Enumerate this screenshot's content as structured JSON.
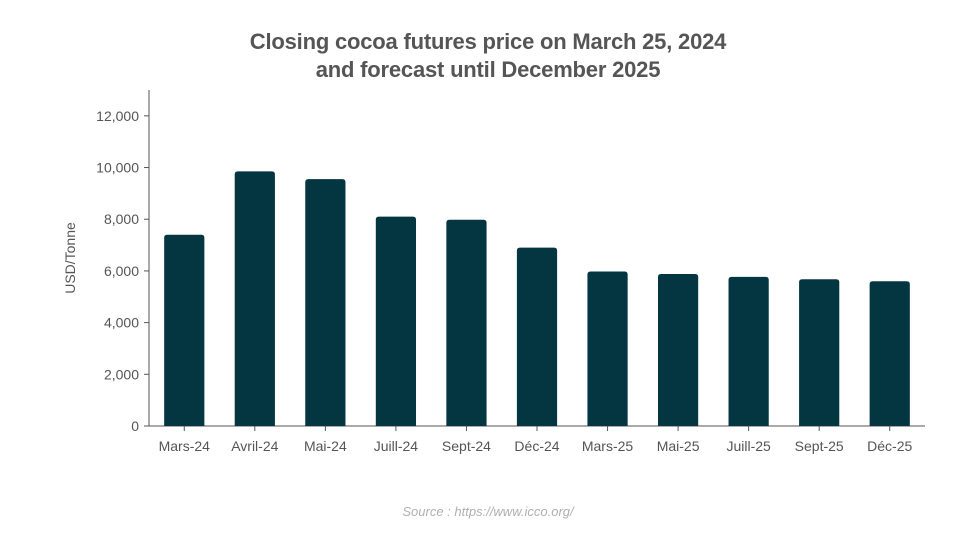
{
  "title_lines": [
    "Closing cocoa futures price on March 25, 2024",
    "and forecast until December 2025"
  ],
  "source": "Source : https://www.icco.org/",
  "colors": {
    "bar": "#033640",
    "axis": "#555555",
    "text": "#555555"
  },
  "chart_data": {
    "type": "bar",
    "categories": [
      "Mars-24",
      "Avril-24",
      "Mai-24",
      "Juill-24",
      "Sept-24",
      "Déc-24",
      "Mars-25",
      "Mai-25",
      "Juill-25",
      "Sept-25",
      "Déc-25"
    ],
    "values": [
      7400,
      9850,
      9550,
      8100,
      7980,
      6900,
      5980,
      5880,
      5770,
      5680,
      5600
    ],
    "title": "Closing cocoa futures price on March 25, 2024 and forecast until December 2025",
    "xlabel": "",
    "ylabel": "USD/Tonne",
    "ylim": [
      0,
      13000
    ],
    "yticks": [
      0,
      2000,
      4000,
      6000,
      8000,
      10000,
      12000
    ],
    "ytick_labels": [
      "0",
      "2,000",
      "4,000",
      "6,000",
      "8,000",
      "10,000",
      "12,000"
    ],
    "grid": false,
    "legend": "none"
  }
}
